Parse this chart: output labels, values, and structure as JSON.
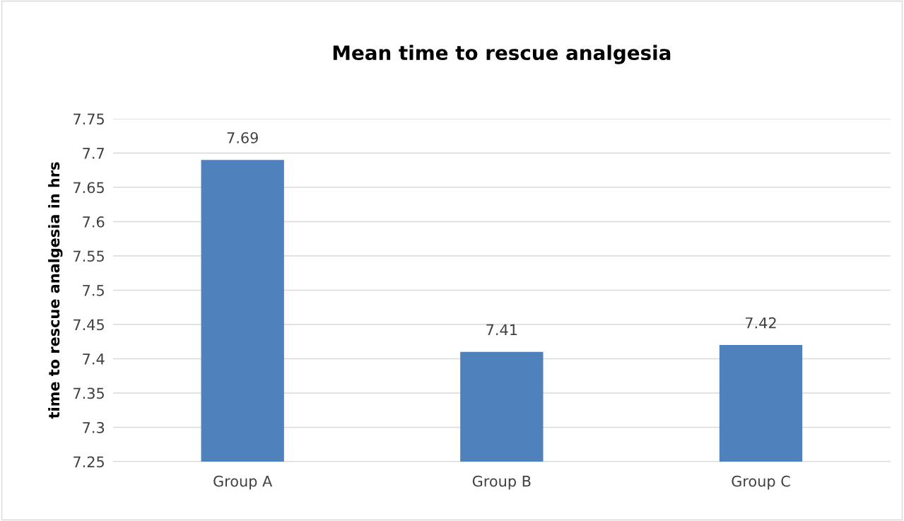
{
  "chart_data": {
    "type": "bar",
    "title": "Mean time to rescue analgesia",
    "ylabel": "time to rescue analgesia in hrs",
    "categories": [
      "Group A",
      "Group B",
      "Group C"
    ],
    "values": [
      7.69,
      7.41,
      7.42
    ],
    "color": "#4f81bd",
    "ylim": [
      7.25,
      7.75
    ],
    "yticks": [
      7.25,
      7.3,
      7.35,
      7.4,
      7.45,
      7.5,
      7.55,
      7.6,
      7.65,
      7.7,
      7.75
    ],
    "grid": "y",
    "data_labels": true,
    "legend": false
  }
}
